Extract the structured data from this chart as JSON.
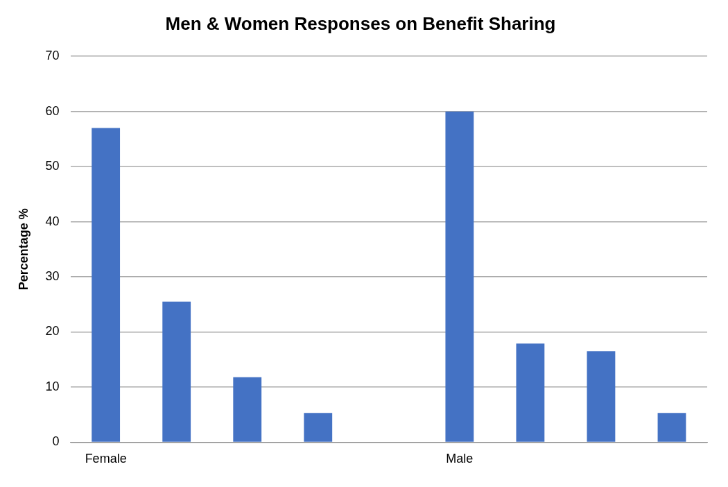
{
  "chart_data": {
    "type": "bar",
    "title": "Men & Women Responses on Benefit Sharing",
    "ylabel": "Percentage %",
    "categories": [
      "Female",
      null,
      null,
      null,
      null,
      "Male",
      null,
      null,
      null
    ],
    "values": [
      57,
      25.5,
      11.8,
      5.3,
      null,
      60,
      17.9,
      16.5,
      5.3
    ],
    "color": "#4472c4",
    "ylim": [
      0,
      70
    ],
    "yticks": [
      0,
      10,
      20,
      30,
      40,
      50,
      60,
      70
    ],
    "grid": "y",
    "legend": false
  }
}
